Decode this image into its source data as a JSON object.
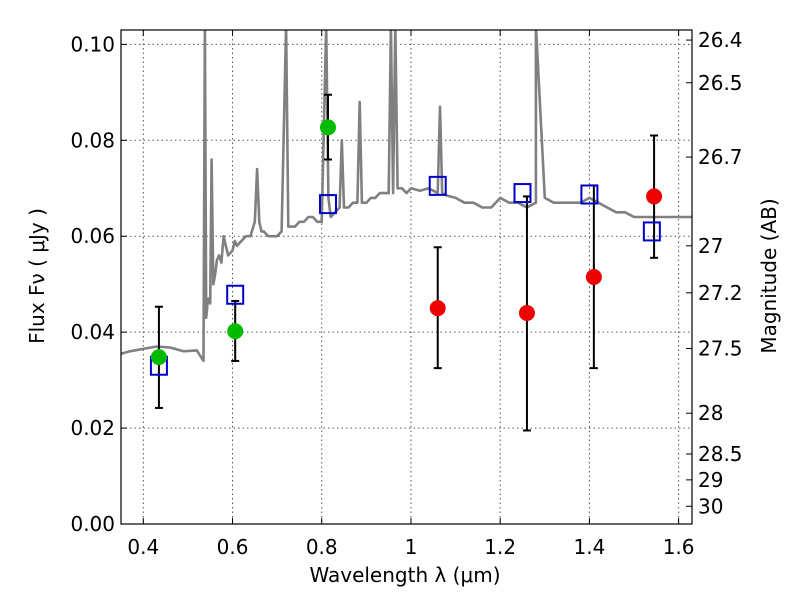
{
  "chart_data": {
    "type": "scatter",
    "title": "",
    "xlabel": "Wavelength  λ (μm)",
    "ylabel": "Flux  Fν  ( μJy )",
    "ylabel_right": "Magnitude (AB)",
    "xlim": [
      0.35,
      1.63
    ],
    "ylim": [
      0.0,
      0.103
    ],
    "grid": true,
    "x_ticks": [
      "0.4",
      "0.6",
      "0.8",
      "1",
      "1.2",
      "1.4",
      "1.6"
    ],
    "y_ticks": [
      "0.00",
      "0.02",
      "0.04",
      "0.06",
      "0.08",
      "0.10"
    ],
    "right_ticks": [
      {
        "label": "26.4",
        "flux": 0.1009
      },
      {
        "label": "26.5",
        "flux": 0.092
      },
      {
        "label": "26.7",
        "flux": 0.0765
      },
      {
        "label": "27",
        "flux": 0.058
      },
      {
        "label": "27.2",
        "flux": 0.0482
      },
      {
        "label": "27.5",
        "flux": 0.0366
      },
      {
        "label": "28",
        "flux": 0.0231
      },
      {
        "label": "28.5",
        "flux": 0.0146
      },
      {
        "label": "29",
        "flux": 0.0092
      },
      {
        "label": "30",
        "flux": 0.0037
      }
    ],
    "series": [
      {
        "kind": "model-spectrum",
        "color": "#808080",
        "x": [
          0.35,
          0.37,
          0.4,
          0.43,
          0.46,
          0.49,
          0.52,
          0.535,
          0.538,
          0.541,
          0.545,
          0.55,
          0.553,
          0.557,
          0.561,
          0.565,
          0.57,
          0.575,
          0.58,
          0.585,
          0.59,
          0.6,
          0.605,
          0.61,
          0.62,
          0.63,
          0.64,
          0.65,
          0.655,
          0.66,
          0.665,
          0.67,
          0.68,
          0.69,
          0.7,
          0.71,
          0.72,
          0.725,
          0.73,
          0.74,
          0.75,
          0.76,
          0.77,
          0.78,
          0.79,
          0.8,
          0.81,
          0.815,
          0.82,
          0.83,
          0.84,
          0.845,
          0.85,
          0.86,
          0.87,
          0.88,
          0.885,
          0.89,
          0.9,
          0.91,
          0.92,
          0.93,
          0.94,
          0.95,
          0.955,
          0.96,
          0.965,
          0.97,
          0.98,
          0.99,
          1.0,
          1.02,
          1.04,
          1.06,
          1.065,
          1.07,
          1.08,
          1.1,
          1.12,
          1.14,
          1.16,
          1.18,
          1.2,
          1.22,
          1.24,
          1.26,
          1.28,
          1.28,
          1.3,
          1.32,
          1.34,
          1.36,
          1.38,
          1.4,
          1.42,
          1.44,
          1.46,
          1.48,
          1.5,
          1.52,
          1.54,
          1.56,
          1.58,
          1.6,
          1.63
        ],
        "y": [
          0.0355,
          0.036,
          0.0365,
          0.037,
          0.0368,
          0.036,
          0.0362,
          0.034,
          0.104,
          0.043,
          0.047,
          0.046,
          0.076,
          0.05,
          0.052,
          0.055,
          0.056,
          0.0545,
          0.06,
          0.058,
          0.056,
          0.057,
          0.059,
          0.058,
          0.059,
          0.06,
          0.06,
          0.063,
          0.074,
          0.063,
          0.061,
          0.061,
          0.06,
          0.06,
          0.06,
          0.061,
          0.104,
          0.062,
          0.062,
          0.062,
          0.063,
          0.063,
          0.064,
          0.064,
          0.063,
          0.063,
          0.104,
          0.068,
          0.064,
          0.065,
          0.066,
          0.08,
          0.066,
          0.066,
          0.067,
          0.067,
          0.088,
          0.067,
          0.067,
          0.068,
          0.068,
          0.069,
          0.069,
          0.069,
          0.104,
          0.069,
          0.104,
          0.07,
          0.07,
          0.069,
          0.07,
          0.0695,
          0.07,
          0.069,
          0.087,
          0.069,
          0.0685,
          0.068,
          0.067,
          0.067,
          0.066,
          0.066,
          0.068,
          0.067,
          0.067,
          0.066,
          0.067,
          0.104,
          0.068,
          0.067,
          0.067,
          0.067,
          0.067,
          0.068,
          0.067,
          0.066,
          0.065,
          0.065,
          0.064,
          0.064,
          0.064,
          0.064,
          0.064,
          0.064,
          0.064
        ]
      },
      {
        "kind": "model-photometry",
        "marker": "open-square",
        "color": "#0000cc",
        "x": [
          0.435,
          0.606,
          0.814,
          1.06,
          1.25,
          1.4,
          1.54
        ],
        "y": [
          0.033,
          0.0478,
          0.0667,
          0.0705,
          0.069,
          0.0687,
          0.061
        ]
      },
      {
        "kind": "observed-detections",
        "marker": "filled-circle",
        "color": "#00bb00",
        "x": [
          0.435,
          0.606,
          0.814
        ],
        "y": [
          0.0348,
          0.0402,
          0.0827
        ],
        "err_low": [
          0.0242,
          0.034,
          0.076
        ],
        "err_high": [
          0.0453,
          0.0465,
          0.0895
        ]
      },
      {
        "kind": "observed-low-significance",
        "marker": "filled-circle",
        "color": "#ee0000",
        "x": [
          1.06,
          1.26,
          1.41,
          1.545
        ],
        "y": [
          0.045,
          0.044,
          0.0515,
          0.0683
        ],
        "err_low": [
          0.0325,
          0.0195,
          0.0325,
          0.0555
        ],
        "err_high": [
          0.0577,
          0.0683,
          0.0706,
          0.081
        ]
      }
    ]
  }
}
